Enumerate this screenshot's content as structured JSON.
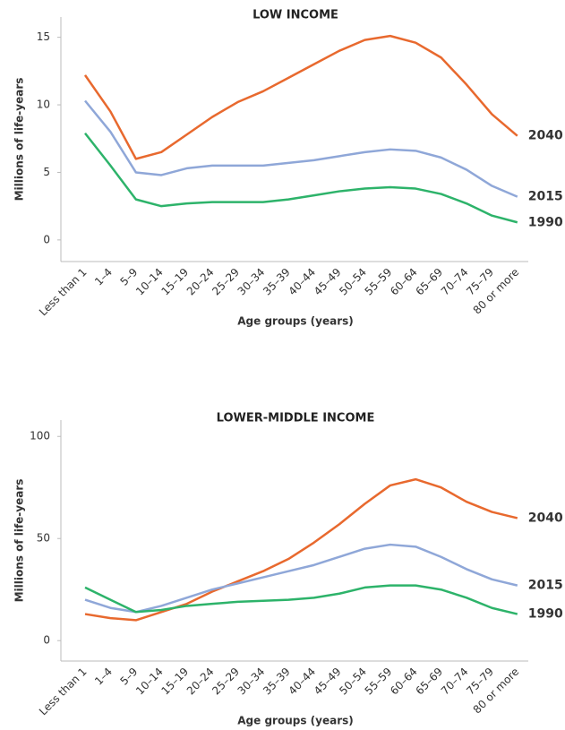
{
  "chart_data": [
    {
      "type": "line",
      "title": "LOW INCOME",
      "ylabel": "Millions of life-years",
      "xlabel": "Age groups (years)",
      "categories": [
        "Less than 1",
        "1–4",
        "5–9",
        "10–14",
        "15–19",
        "20–24",
        "25–29",
        "30–34",
        "35–39",
        "40–44",
        "45–49",
        "50–54",
        "55–59",
        "60–64",
        "65–69",
        "70–74",
        "75–79",
        "80 or more"
      ],
      "ylim": [
        -1.6,
        16.5
      ],
      "yticks": [
        0,
        5,
        10,
        15
      ],
      "series": [
        {
          "name": "2040",
          "color": "#e8692e",
          "values": [
            12.2,
            9.5,
            6.0,
            6.5,
            7.8,
            9.1,
            10.2,
            11.0,
            12.0,
            13.0,
            14.0,
            14.8,
            15.1,
            14.6,
            13.5,
            11.5,
            9.3,
            7.7
          ]
        },
        {
          "name": "2015",
          "color": "#8fa7d8",
          "values": [
            10.3,
            8.0,
            5.0,
            4.8,
            5.3,
            5.5,
            5.5,
            5.5,
            5.7,
            5.9,
            6.2,
            6.5,
            6.7,
            6.6,
            6.1,
            5.2,
            4.0,
            3.2
          ]
        },
        {
          "name": "1990",
          "color": "#2db36a",
          "values": [
            7.9,
            5.5,
            3.0,
            2.5,
            2.7,
            2.8,
            2.8,
            2.8,
            3.0,
            3.3,
            3.6,
            3.8,
            3.9,
            3.8,
            3.4,
            2.7,
            1.8,
            1.3
          ]
        }
      ]
    },
    {
      "type": "line",
      "title": "LOWER-MIDDLE INCOME",
      "ylabel": "Millions of life-years",
      "xlabel": "Age groups (years)",
      "categories": [
        "Less than 1",
        "1–4",
        "5–9",
        "10–14",
        "15–19",
        "20–24",
        "25–29",
        "30–34",
        "35–39",
        "40–44",
        "45–49",
        "50–54",
        "55–59",
        "60–64",
        "65–69",
        "70–74",
        "75–79",
        "80 or more"
      ],
      "ylim": [
        -10,
        108
      ],
      "yticks": [
        0,
        50,
        100
      ],
      "series": [
        {
          "name": "2040",
          "color": "#e8692e",
          "values": [
            13,
            11,
            10,
            14,
            18,
            24,
            29,
            34,
            40,
            48,
            57,
            67,
            76,
            79,
            75,
            68,
            63,
            60
          ]
        },
        {
          "name": "2015",
          "color": "#8fa7d8",
          "values": [
            20,
            16,
            14,
            17,
            21,
            25,
            28,
            31,
            34,
            37,
            41,
            45,
            47,
            46,
            41,
            35,
            30,
            27
          ]
        },
        {
          "name": "1990",
          "color": "#2db36a",
          "values": [
            26,
            20,
            14,
            15,
            17,
            18,
            19,
            19.5,
            20,
            21,
            23,
            26,
            27,
            27,
            25,
            21,
            16,
            13
          ]
        }
      ]
    }
  ]
}
